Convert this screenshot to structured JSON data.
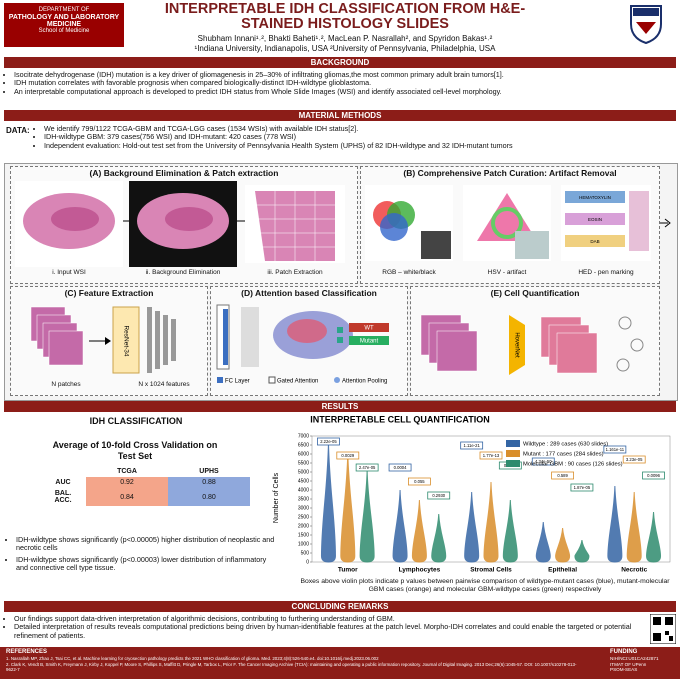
{
  "header": {
    "logo_left": {
      "line1": "DEPARTMENT OF",
      "line2": "PATHOLOGY AND LABORATORY",
      "line3": "MEDICINE",
      "line4": "School of Medicine"
    },
    "title": "INTERPRETABLE IDH CLASSIFICATION FROM H&E-STAINED HISTOLOGY SLIDES",
    "authors": "Shubham Innani¹˒², Bhakti Baheti¹˒², MacLean P. Nasrallah², and Spyridon Bakas¹˒²",
    "affiliations": "¹Indiana University, Indianapolis, USA  ²University of Pennsylvania, Philadelphia, USA"
  },
  "background": {
    "heading": "BACKGROUND",
    "bullets": [
      "Isocitrate dehydrogenase (IDH) mutation is a key driver of gliomagenesis in 25–30% of infiltrating gliomas,the most common primary adult brain tumors[1].",
      "IDH mutation correlates with favorable prognosis when compared biologically-distinct IDH-wildtype glioblastoma.",
      "An interpretable computational approach is developed to predict IDH status from Whole Slide Images (WSI) and identify associated cell-level morphology."
    ]
  },
  "methods": {
    "heading": "MATERIAL METHODS",
    "data_label": "DATA:",
    "bullets": [
      "We identify 799/1122 TCGA-GBM and TCGA-LGG cases (1534 WSIs) with available IDH status[2].",
      "IDH-wildtype GBM: 379 cases(756 WSI) and IDH-mutant: 420 cases (778 WSI)",
      "Independent evaluation: Hold-out test set from the University of Pennsylvania Health System (UPHS) of 82 IDH-wildtype and 32 IDH-mutant tumors"
    ]
  },
  "panels": {
    "a": {
      "title": "(A) Background Elimination & Patch extraction",
      "captions": [
        "i. Input WSI",
        "ii. Background Elimination",
        "iii. Patch Extraction"
      ]
    },
    "b": {
      "title": "(B)  Comprehensive Patch Curation: Artifact Removal",
      "captions": [
        "RGB – white/black",
        "HSV - artifact",
        "HED - pen marking"
      ],
      "stains": [
        "HEMATOXYLIN",
        "EOSIN",
        "DAB"
      ]
    },
    "c": {
      "title": "(C) Feature Extraction",
      "model": "ResNet-34",
      "captions": [
        "N patches",
        "N x 1024 features"
      ]
    },
    "d": {
      "title": "(D) Attention based Classification",
      "outputs": [
        "WT",
        "Mutant"
      ],
      "legend": [
        "FC Layer",
        "Gated Attention",
        "Attention Pooling"
      ]
    },
    "e": {
      "title": "(E) Cell Quantification",
      "model": "HoverNet"
    }
  },
  "results": {
    "heading": "RESULTS",
    "classification": {
      "title": "IDH CLASSIFICATION",
      "subtitle": "Average of 10-fold Cross Validation on Test Set",
      "columns": [
        "TCGA",
        "UPHS"
      ],
      "rows": [
        {
          "metric": "AUC",
          "values": [
            "0.92",
            "0.88"
          ]
        },
        {
          "metric": "BAL. ACC.",
          "values": [
            "0.84",
            "0.80"
          ]
        }
      ],
      "bullets": [
        "IDH-wildtype shows significantly (p<0.00005) higher distribution of neoplastic and necrotic cells",
        "IDH-wildtype shows significantly (p<0.00003) lower distribution of inflammatory and connective cell type tissue."
      ]
    },
    "quantification": {
      "title": "INTERPRETABLE CELL QUANTIFICATION",
      "y_label": "Number of Cells",
      "ylim": [
        0,
        7000
      ],
      "yticks": [
        0,
        500,
        1000,
        1500,
        2000,
        2500,
        3000,
        3500,
        4000,
        4500,
        5000,
        5500,
        6000,
        6500,
        7000
      ],
      "categories": [
        "Tumor",
        "Lymphocytes",
        "Stromal Cells",
        "Epithelial",
        "Necrotic"
      ],
      "series": [
        {
          "name": "Wildtype : 289 cases (630 slides)",
          "color": "#3465a4"
        },
        {
          "name": "Mutant : 177 cases (284 slides)",
          "color": "#d98e2b"
        },
        {
          "name": "Molecular GBM : 90 cases (126 slides)",
          "color": "#2e8b6e"
        }
      ],
      "p_values": [
        [
          "2.22e-05",
          "0.0029",
          "2.47e-05"
        ],
        [
          "0.0004",
          "0.055",
          "0.2930"
        ],
        [
          "1.11e-21",
          "1.77e-13",
          "0.0037"
        ],
        [
          "4.34e-50",
          "0.589",
          "1.87e-05"
        ],
        [
          "1.161e-11",
          "3.23e-05",
          "0.0096"
        ]
      ],
      "caption": "Boxes above violin plots indicate p values between pairwise comparison of wildtype-mutant cases (blue), mutant-molecular GBM cases (orange) and molecular GBM-wildtype cases (green) respectively"
    }
  },
  "conclusion": {
    "heading": "CONCLUDING REMARKS",
    "bullets": [
      "Our findings support data-driven interpretation of algorithmic decisions, contributing to furthering understanding of GBM.",
      "Detailed interpretation of results reveals computational predictions being driven by human-identifiable features at the patch level. Morpho-IDH correlates and could enable the targeted or potential refinement of patients."
    ]
  },
  "footer": {
    "references_title": "REFERENCES",
    "references": [
      "1. Nasrallah MP, Zhao J, Tsai CC, et al. Machine learning for cryosection pathology predicts the 2021 WHO classification of glioma. Med. 2023;4(8):526-540.e4. doi:10.1016/j.medj.2023.06.002",
      "2. Clark K, Vendt B, Smith K, Freymann J, Kirby J, Koppel P, Moore S, Phillips S, Maffitt D, Pringle M, Tarbox L, Prior F. The Cancer Imaging Archive (TCIA): maintaining and operating a public information repository. Journal of Digital Imaging. 2013 Dec;26(6):1045-57. DOI: 10.1007/s10278-013-9622-7"
    ],
    "funding_title": "FUNDING",
    "funding": [
      "NIH/NCI:U01CA242871",
      "ITMAT OF UPenn",
      "PSOM-SEAS"
    ]
  }
}
